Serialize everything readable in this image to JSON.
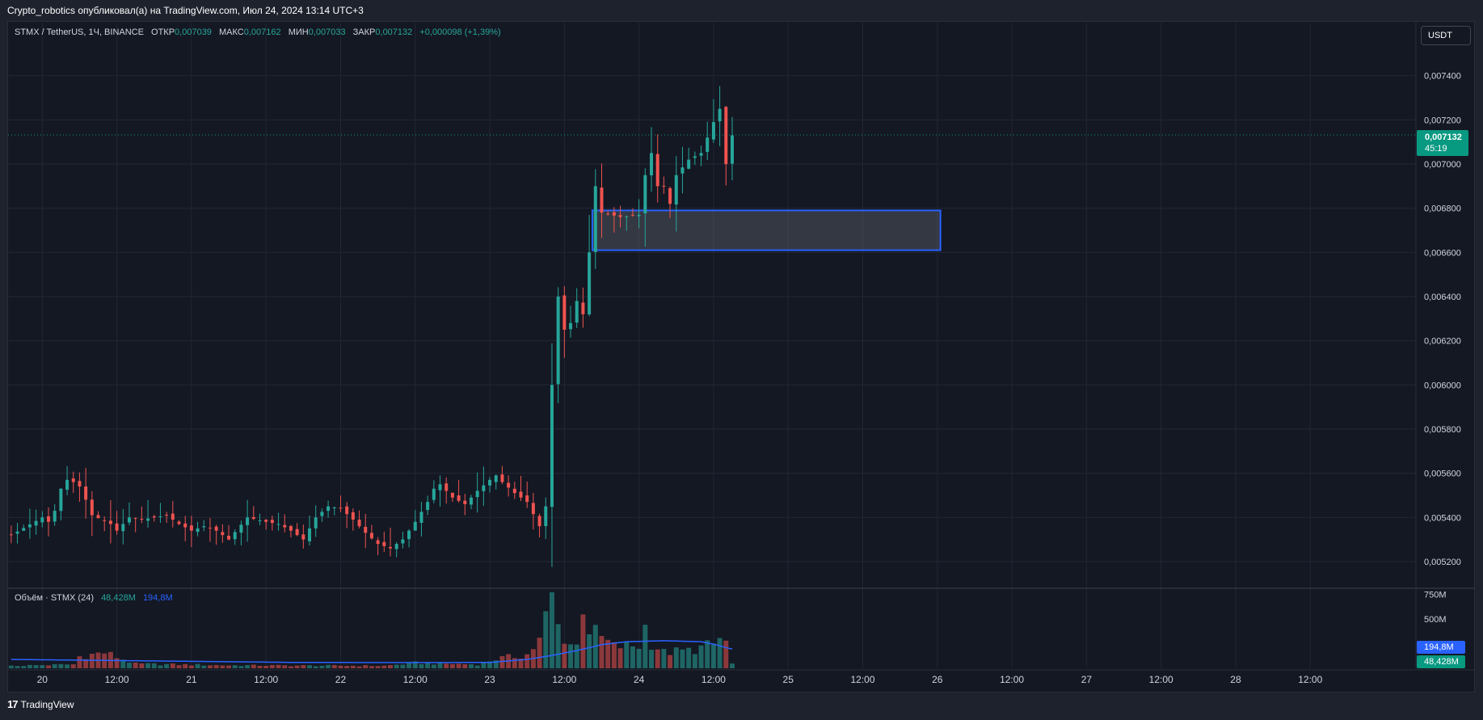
{
  "header": {
    "published": "Crypto_robotics опубликовал(а) на TradingView.com, Июл 24, 2024 13:14 UTC+3"
  },
  "legend": {
    "symbol": "STMX / TetherUS, 1Ч, BINANCE",
    "open_label": "ОТКР",
    "open": "0,007039",
    "high_label": "МАКС",
    "high": "0,007162",
    "low_label": "МИН",
    "low": "0,007033",
    "close_label": "ЗАКР",
    "close": "0,007132",
    "change": "+0,000098 (+1,39%)"
  },
  "currency_button": "USDT",
  "last_price": {
    "value": "0,007132",
    "countdown": "45:19"
  },
  "volume_legend": {
    "title": "Объём · STMX (24)",
    "value": "48,428M",
    "ma": "194,8M"
  },
  "volume_tags": {
    "ma": "194,8M",
    "value": "48,428M"
  },
  "footer": {
    "brand": "TradingView",
    "logo": "17"
  },
  "colors": {
    "up": "#26a69a",
    "down": "#ef5350",
    "ma": "#2962ff",
    "zone_border": "#2962ff",
    "price_tag": "#089981"
  },
  "chart_data": [
    {
      "type": "candlestick",
      "symbol": "STMX / TetherUS",
      "interval": "1Ч",
      "exchange": "BINANCE",
      "price_axis": {
        "ticks": [
          "0,007400",
          "0,007200",
          "0,007000",
          "0,006800",
          "0,006600",
          "0,006400",
          "0,006200",
          "0,006000",
          "0,005800",
          "0,005600",
          "0,005400",
          "0,005200"
        ],
        "tick_values": [
          0.0074,
          0.0072,
          0.007,
          0.0068,
          0.0066,
          0.0064,
          0.0062,
          0.006,
          0.0058,
          0.0056,
          0.0054,
          0.0052
        ],
        "range": [
          0.00509,
          0.00756
        ]
      },
      "time_axis": {
        "labels": [
          "20",
          "12:00",
          "21",
          "12:00",
          "22",
          "12:00",
          "23",
          "12:00",
          "24",
          "12:00",
          "25",
          "12:00",
          "26",
          "12:00",
          "27",
          "12:00",
          "28",
          "12:00"
        ],
        "label_hours": [
          0,
          12,
          24,
          36,
          48,
          60,
          72,
          84,
          96,
          108,
          120,
          132,
          144,
          156,
          168,
          180,
          192,
          204
        ],
        "hours_from_first_label_range": [
          -5.5,
          221
        ]
      },
      "grid": true,
      "last_price": 0.007132,
      "zone": {
        "from_hour": 88.5,
        "to_hour": 144.5,
        "top": 0.00679,
        "bottom": 0.00661
      },
      "anchors": [
        [
          -5,
          0.00532
        ],
        [
          0,
          0.0054
        ],
        [
          1,
          0.00538
        ],
        [
          2,
          0.00543
        ],
        [
          3,
          0.00553
        ],
        [
          4,
          0.00557
        ],
        [
          5,
          0.00556
        ],
        [
          6,
          0.00554
        ],
        [
          7,
          0.00548
        ],
        [
          8,
          0.00541
        ],
        [
          11,
          0.00537
        ],
        [
          12,
          0.00534
        ],
        [
          14,
          0.0054
        ],
        [
          16,
          0.00539
        ],
        [
          18,
          0.0054
        ],
        [
          20,
          0.00541
        ],
        [
          22,
          0.00537
        ],
        [
          24,
          0.00534
        ],
        [
          26,
          0.00536
        ],
        [
          28,
          0.00534
        ],
        [
          30,
          0.0053
        ],
        [
          33,
          0.0054
        ],
        [
          36,
          0.00538
        ],
        [
          38,
          0.00537
        ],
        [
          40,
          0.00534
        ],
        [
          42,
          0.0053
        ],
        [
          44,
          0.0054
        ],
        [
          46,
          0.00545
        ],
        [
          48,
          0.00544
        ],
        [
          50,
          0.00539
        ],
        [
          52,
          0.00533
        ],
        [
          54,
          0.00528
        ],
        [
          56,
          0.00526
        ],
        [
          58,
          0.0053
        ],
        [
          60,
          0.00538
        ],
        [
          62,
          0.00547
        ],
        [
          63,
          0.00553
        ],
        [
          64,
          0.00555
        ],
        [
          66,
          0.00549
        ],
        [
          68,
          0.00546
        ],
        [
          70,
          0.00552
        ],
        [
          72,
          0.00557
        ],
        [
          73,
          0.00559
        ],
        [
          74,
          0.00556
        ],
        [
          76,
          0.00551
        ],
        [
          78,
          0.00547
        ],
        [
          80,
          0.00536
        ],
        [
          81,
          0.00545
        ],
        [
          82,
          0.006
        ],
        [
          83,
          0.0064
        ],
        [
          84,
          0.00625
        ],
        [
          85,
          0.00628
        ],
        [
          86,
          0.00638
        ],
        [
          87,
          0.00632
        ],
        [
          88,
          0.0066
        ],
        [
          89,
          0.0069
        ],
        [
          90,
          0.00678
        ],
        [
          93,
          0.00676
        ],
        [
          96,
          0.00677
        ],
        [
          97,
          0.00695
        ],
        [
          98,
          0.00705
        ],
        [
          99,
          0.0069
        ],
        [
          100,
          0.0069
        ],
        [
          101,
          0.00682
        ],
        [
          102,
          0.00695
        ],
        [
          104,
          0.00702
        ],
        [
          106,
          0.00705
        ],
        [
          108,
          0.00719
        ],
        [
          109,
          0.00725
        ],
        [
          110,
          0.007
        ],
        [
          111,
          0.00713
        ]
      ]
    },
    {
      "type": "bar",
      "title": "Объём · STMX (24)",
      "value_axis": {
        "ticks": [
          "750M",
          "500M",
          "250M"
        ],
        "tick_values": [
          750,
          500,
          250
        ],
        "unit": "M",
        "max": 780
      },
      "volume_anchors": [
        [
          -5,
          25
        ],
        [
          5,
          40
        ],
        [
          6,
          120
        ],
        [
          10,
          160
        ],
        [
          15,
          45
        ],
        [
          30,
          30
        ],
        [
          55,
          25
        ],
        [
          60,
          55
        ],
        [
          70,
          40
        ],
        [
          73,
          95
        ],
        [
          76,
          120
        ],
        [
          78,
          140
        ],
        [
          80,
          280
        ],
        [
          81,
          500
        ],
        [
          82,
          720
        ],
        [
          83,
          420
        ],
        [
          84,
          320
        ],
        [
          85,
          250
        ],
        [
          86,
          230
        ],
        [
          87,
          680
        ],
        [
          88,
          400
        ],
        [
          89,
          350
        ],
        [
          92,
          220
        ],
        [
          96,
          230
        ],
        [
          97,
          420
        ],
        [
          98,
          260
        ],
        [
          100,
          160
        ],
        [
          104,
          180
        ],
        [
          108,
          240
        ],
        [
          109,
          300
        ],
        [
          110,
          260
        ],
        [
          111,
          48.428
        ]
      ],
      "ma_anchors": [
        [
          -5,
          90
        ],
        [
          10,
          80
        ],
        [
          40,
          60
        ],
        [
          60,
          58
        ],
        [
          72,
          60
        ],
        [
          78,
          90
        ],
        [
          82,
          130
        ],
        [
          86,
          180
        ],
        [
          90,
          240
        ],
        [
          94,
          270
        ],
        [
          100,
          280
        ],
        [
          106,
          270
        ],
        [
          108,
          245
        ],
        [
          110,
          210
        ],
        [
          111,
          195
        ]
      ],
      "last_value": 48.428,
      "last_ma": 194.8
    }
  ]
}
